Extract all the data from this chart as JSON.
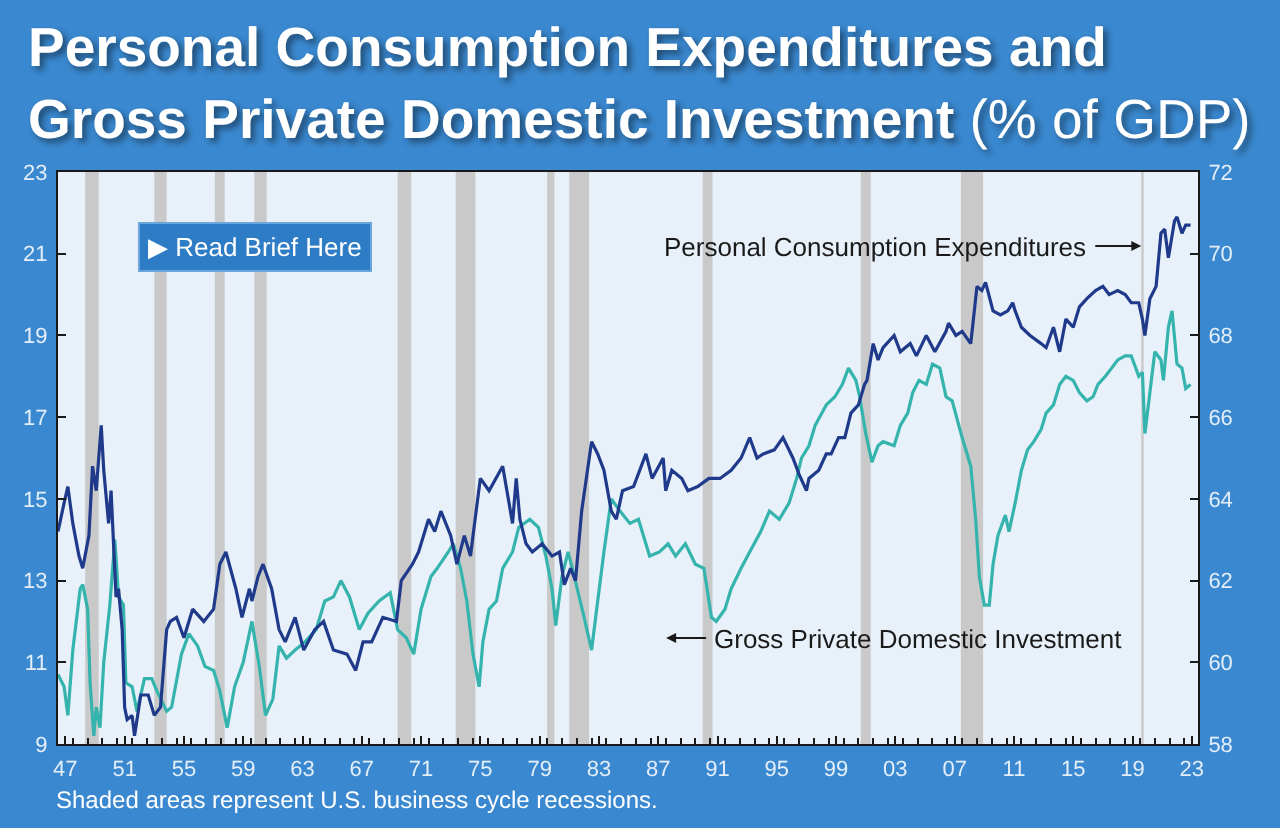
{
  "chart_data": {
    "type": "line",
    "title": "Personal Consumption Expenditures and Gross Private Domestic Investment (% of GDP)",
    "annotations": [
      "▶ Read Brief Here",
      "Shaded areas represent U.S. business cycle recessions."
    ],
    "xlim": [
      "1947-01",
      "2023-12"
    ],
    "xticks": [
      {
        "value": "1947-07",
        "label": "47"
      },
      {
        "value": "1951-07",
        "label": "51"
      },
      {
        "value": "1955-07",
        "label": "55"
      },
      {
        "value": "1959-07",
        "label": "59"
      },
      {
        "value": "1963-07",
        "label": "63"
      },
      {
        "value": "1967-07",
        "label": "67"
      },
      {
        "value": "1971-07",
        "label": "71"
      },
      {
        "value": "1975-07",
        "label": "75"
      },
      {
        "value": "1979-07",
        "label": "79"
      },
      {
        "value": "1983-07",
        "label": "83"
      },
      {
        "value": "1987-07",
        "label": "87"
      },
      {
        "value": "1991-07",
        "label": "91"
      },
      {
        "value": "1995-07",
        "label": "95"
      },
      {
        "value": "1999-07",
        "label": "99"
      },
      {
        "value": "2003-07",
        "label": "03"
      },
      {
        "value": "2007-07",
        "label": "07"
      },
      {
        "value": "2011-07",
        "label": "11"
      },
      {
        "value": "2015-07",
        "label": "15"
      },
      {
        "value": "2019-07",
        "label": "19"
      },
      {
        "value": "2023-07",
        "label": "23"
      },
      {
        "value": "1948-01",
        "label": null
      },
      {
        "value": "1949-01",
        "label": null
      },
      {
        "value": "1950-01",
        "label": null
      },
      {
        "value": "1951-01",
        "label": null
      },
      {
        "value": "1952-01",
        "label": null
      },
      {
        "value": "1953-01",
        "label": null
      },
      {
        "value": "1954-01",
        "label": null
      },
      {
        "value": "1955-01",
        "label": null
      },
      {
        "value": "1956-01",
        "label": null
      },
      {
        "value": "1957-01",
        "label": null
      },
      {
        "value": "1958-01",
        "label": null
      },
      {
        "value": "1959-01",
        "label": null
      },
      {
        "value": "1960-01",
        "label": null
      },
      {
        "value": "1961-01",
        "label": null
      },
      {
        "value": "1962-01",
        "label": null
      },
      {
        "value": "1963-01",
        "label": null
      },
      {
        "value": "1964-01",
        "label": null
      },
      {
        "value": "1965-01",
        "label": null
      },
      {
        "value": "1966-01",
        "label": null
      },
      {
        "value": "1967-01",
        "label": null
      },
      {
        "value": "1968-01",
        "label": null
      },
      {
        "value": "1969-01",
        "label": null
      },
      {
        "value": "1970-01",
        "label": null
      },
      {
        "value": "1971-01",
        "label": null
      },
      {
        "value": "1972-01",
        "label": null
      },
      {
        "value": "1973-01",
        "label": null
      },
      {
        "value": "1974-01",
        "label": null
      },
      {
        "value": "1975-01",
        "label": null
      },
      {
        "value": "1976-01",
        "label": null
      },
      {
        "value": "1977-01",
        "label": null
      },
      {
        "value": "1978-01",
        "label": null
      },
      {
        "value": "1979-01",
        "label": null
      },
      {
        "value": "1980-01",
        "label": null
      },
      {
        "value": "1981-01",
        "label": null
      },
      {
        "value": "1982-01",
        "label": null
      },
      {
        "value": "1983-01",
        "label": null
      },
      {
        "value": "1984-01",
        "label": null
      },
      {
        "value": "1985-01",
        "label": null
      },
      {
        "value": "1986-01",
        "label": null
      },
      {
        "value": "1987-01",
        "label": null
      },
      {
        "value": "1988-01",
        "label": null
      },
      {
        "value": "1989-01",
        "label": null
      },
      {
        "value": "1990-01",
        "label": null
      },
      {
        "value": "1991-01",
        "label": null
      },
      {
        "value": "1992-01",
        "label": null
      },
      {
        "value": "1993-01",
        "label": null
      },
      {
        "value": "1994-01",
        "label": null
      },
      {
        "value": "1995-01",
        "label": null
      },
      {
        "value": "1996-01",
        "label": null
      },
      {
        "value": "1997-01",
        "label": null
      },
      {
        "value": "1998-01",
        "label": null
      },
      {
        "value": "1999-01",
        "label": null
      },
      {
        "value": "2000-01",
        "label": null
      },
      {
        "value": "2001-01",
        "label": null
      },
      {
        "value": "2002-01",
        "label": null
      },
      {
        "value": "2003-01",
        "label": null
      },
      {
        "value": "2004-01",
        "label": null
      },
      {
        "value": "2005-01",
        "label": null
      },
      {
        "value": "2006-01",
        "label": null
      },
      {
        "value": "2007-01",
        "label": null
      },
      {
        "value": "2008-01",
        "label": null
      },
      {
        "value": "2009-01",
        "label": null
      },
      {
        "value": "2010-01",
        "label": null
      },
      {
        "value": "2011-01",
        "label": null
      },
      {
        "value": "2012-01",
        "label": null
      },
      {
        "value": "2013-01",
        "label": null
      },
      {
        "value": "2014-01",
        "label": null
      },
      {
        "value": "2015-01",
        "label": null
      },
      {
        "value": "2016-01",
        "label": null
      },
      {
        "value": "2017-01",
        "label": null
      },
      {
        "value": "2018-01",
        "label": null
      },
      {
        "value": "2019-01",
        "label": null
      },
      {
        "value": "2020-01",
        "label": null
      },
      {
        "value": "2021-01",
        "label": null
      },
      {
        "value": "2022-01",
        "label": null
      },
      {
        "value": "2023-01",
        "label": null
      }
    ],
    "ylim": [
      9,
      23
    ],
    "yticks": [
      9,
      11,
      13,
      15,
      17,
      19,
      21,
      23
    ],
    "y2lim": [
      58,
      72
    ],
    "y2ticks": [
      58,
      60,
      62,
      64,
      66,
      68,
      70,
      72
    ],
    "bands": [
      {
        "axis": "x",
        "from": "1948-11",
        "to": "1949-10",
        "color": "#c9c9c9"
      },
      {
        "axis": "x",
        "from": "1953-07",
        "to": "1954-05",
        "color": "#c9c9c9"
      },
      {
        "axis": "x",
        "from": "1957-08",
        "to": "1958-04",
        "color": "#c9c9c9"
      },
      {
        "axis": "x",
        "from": "1960-04",
        "to": "1961-02",
        "color": "#c9c9c9"
      },
      {
        "axis": "x",
        "from": "1969-12",
        "to": "1970-11",
        "color": "#c9c9c9"
      },
      {
        "axis": "x",
        "from": "1973-11",
        "to": "1975-03",
        "color": "#c9c9c9"
      },
      {
        "axis": "x",
        "from": "1980-01",
        "to": "1980-07",
        "color": "#c9c9c9"
      },
      {
        "axis": "x",
        "from": "1981-07",
        "to": "1982-11",
        "color": "#c9c9c9"
      },
      {
        "axis": "x",
        "from": "1990-07",
        "to": "1991-03",
        "color": "#c9c9c9"
      },
      {
        "axis": "x",
        "from": "2001-03",
        "to": "2001-11",
        "color": "#c9c9c9"
      },
      {
        "axis": "x",
        "from": "2007-12",
        "to": "2009-06",
        "color": "#c9c9c9"
      },
      {
        "axis": "x",
        "from": "2020-02",
        "to": "2020-04",
        "color": "#c9c9c9"
      }
    ],
    "series": [
      {
        "name": "Personal Consumption Expenditures",
        "color": "#1f3a8a",
        "axis": "y2",
        "x": [
          "1947-01",
          "1947-06",
          "1947-09",
          "1948-01",
          "1948-06",
          "1948-09",
          "1949-02",
          "1949-05",
          "1949-08",
          "1949-12",
          "1950-02",
          "1950-06",
          "1950-08",
          "1950-12",
          "1951-02",
          "1951-05",
          "1951-07",
          "1951-09",
          "1952-01",
          "1952-03",
          "1952-08",
          "1953-02",
          "1953-07",
          "1953-12",
          "1954-05",
          "1954-08",
          "1955-01",
          "1955-07",
          "1956-02",
          "1956-11",
          "1957-07",
          "1957-12",
          "1958-05",
          "1959-01",
          "1959-06",
          "1959-12",
          "1960-02",
          "1960-07",
          "1960-11",
          "1961-06",
          "1961-12",
          "1962-05",
          "1963-01",
          "1963-08",
          "1964-05",
          "1964-12",
          "1965-08",
          "1966-07",
          "1967-02",
          "1967-08",
          "1968-03",
          "1968-12",
          "1969-11",
          "1970-03",
          "1970-12",
          "1971-05",
          "1972-01",
          "1972-06",
          "1972-11",
          "1973-07",
          "1973-12",
          "1974-06",
          "1974-11",
          "1975-01",
          "1975-07",
          "1976-02",
          "1977-01",
          "1977-09",
          "1977-12",
          "1978-03",
          "1978-08",
          "1979-01",
          "1979-09",
          "1980-05",
          "1980-11",
          "1981-03",
          "1981-08",
          "1981-12",
          "1982-05",
          "1983-01",
          "1983-06",
          "1983-11",
          "1984-05",
          "1984-09",
          "1985-02",
          "1985-11",
          "1986-09",
          "1987-02",
          "1987-11",
          "1988-01",
          "1988-06",
          "1989-02",
          "1989-07",
          "1990-03",
          "1990-12",
          "1991-09",
          "1992-06",
          "1993-02",
          "1993-09",
          "1994-03",
          "1994-08",
          "1995-05",
          "1995-12",
          "1996-08",
          "1997-01",
          "1997-07",
          "1997-09",
          "1998-05",
          "1998-11",
          "1999-03",
          "1999-09",
          "2000-02",
          "2000-07",
          "2001-01",
          "2001-06",
          "2001-08",
          "2002-01",
          "2002-05",
          "2002-09",
          "2003-06",
          "2003-11",
          "2004-07",
          "2004-12",
          "2005-08",
          "2006-03",
          "2006-12",
          "2007-02",
          "2007-08",
          "2008-01",
          "2008-08",
          "2009-01",
          "2009-05",
          "2009-08",
          "2010-02",
          "2010-08",
          "2011-02",
          "2011-06",
          "2011-08",
          "2012-01",
          "2012-08",
          "2013-05",
          "2013-09",
          "2014-03",
          "2014-08",
          "2015-01",
          "2015-07",
          "2015-12",
          "2016-06",
          "2017-01",
          "2017-07",
          "2017-12",
          "2018-07",
          "2019-01",
          "2019-06",
          "2019-12",
          "2020-03",
          "2020-05",
          "2020-09",
          "2021-02",
          "2021-06",
          "2021-09",
          "2021-12",
          "2022-05",
          "2022-07",
          "2022-11",
          "2023-02",
          "2023-06"
        ],
        "values": [
          63.2,
          63.9,
          64.3,
          63.4,
          62.6,
          62.3,
          63.1,
          64.8,
          64.2,
          65.8,
          64.7,
          63.4,
          64.2,
          61.6,
          61.8,
          60.8,
          58.9,
          58.6,
          58.7,
          58.2,
          59.2,
          59.2,
          58.7,
          58.9,
          60.8,
          61.0,
          61.1,
          60.6,
          61.3,
          61.0,
          61.3,
          62.4,
          62.7,
          61.8,
          61.1,
          61.8,
          61.5,
          62.1,
          62.4,
          61.8,
          60.8,
          60.5,
          61.1,
          60.3,
          60.8,
          61.0,
          60.3,
          60.2,
          59.8,
          60.5,
          60.5,
          61.1,
          61.0,
          62.0,
          62.4,
          62.7,
          63.5,
          63.2,
          63.7,
          63.1,
          62.4,
          63.1,
          62.6,
          63.1,
          64.5,
          64.2,
          64.8,
          63.4,
          64.5,
          63.5,
          62.9,
          62.7,
          62.9,
          62.6,
          62.7,
          61.9,
          62.3,
          62.0,
          63.7,
          65.4,
          65.1,
          64.7,
          63.7,
          63.5,
          64.2,
          64.3,
          65.1,
          64.5,
          65.0,
          64.2,
          64.7,
          64.5,
          64.2,
          64.3,
          64.5,
          64.5,
          64.7,
          65.0,
          65.5,
          65.0,
          65.1,
          65.2,
          65.5,
          65.0,
          64.6,
          64.2,
          64.5,
          64.7,
          65.1,
          65.1,
          65.5,
          65.5,
          66.1,
          66.3,
          66.8,
          66.9,
          67.8,
          67.4,
          67.7,
          68.0,
          67.6,
          67.8,
          67.5,
          68.0,
          67.6,
          68.1,
          68.3,
          68.0,
          68.1,
          67.8,
          69.2,
          69.1,
          69.3,
          68.6,
          68.5,
          68.6,
          68.8,
          68.6,
          68.2,
          68.0,
          67.8,
          67.7,
          68.2,
          67.6,
          68.4,
          68.2,
          68.7,
          68.9,
          69.1,
          69.2,
          69.0,
          69.1,
          69.0,
          68.8,
          68.8,
          68.4,
          68.0,
          68.9,
          69.2,
          70.5,
          70.6,
          69.9,
          70.8,
          70.9,
          70.5,
          70.7,
          70.7
        ]
      },
      {
        "name": "Gross Private Domestic Investment",
        "color": "#35b3ad",
        "x": [
          "1947-01",
          "1947-06",
          "1947-09",
          "1948-01",
          "1948-07",
          "1948-09",
          "1949-01",
          "1949-03",
          "1949-06",
          "1949-08",
          "1949-11",
          "1950-02",
          "1950-07",
          "1950-11",
          "1951-02",
          "1951-06",
          "1951-08",
          "1952-01",
          "1952-05",
          "1952-11",
          "1953-05",
          "1953-09",
          "1954-05",
          "1954-09",
          "1955-05",
          "1955-11",
          "1956-06",
          "1956-12",
          "1957-07",
          "1957-12",
          "1958-06",
          "1958-12",
          "1959-07",
          "1960-02",
          "1960-08",
          "1961-01",
          "1961-07",
          "1961-12",
          "1962-06",
          "1963-01",
          "1963-09",
          "1964-06",
          "1965-01",
          "1965-08",
          "1966-02",
          "1966-09",
          "1967-05",
          "1967-12",
          "1968-09",
          "1969-06",
          "1969-12",
          "1970-07",
          "1971-01",
          "1971-07",
          "1972-03",
          "1972-08",
          "1973-05",
          "1973-09",
          "1974-03",
          "1974-08",
          "1975-01",
          "1975-06",
          "1975-09",
          "1976-02",
          "1976-08",
          "1977-01",
          "1977-09",
          "1978-02",
          "1978-11",
          "1979-06",
          "1979-12",
          "1980-05",
          "1980-08",
          "1981-01",
          "1981-06",
          "1981-11",
          "1982-07",
          "1983-01",
          "1983-06",
          "1983-11",
          "1984-05",
          "1984-12",
          "1985-08",
          "1986-03",
          "1986-12",
          "1987-08",
          "1988-03",
          "1988-09",
          "1989-05",
          "1990-01",
          "1990-08",
          "1991-02",
          "1991-06",
          "1992-01",
          "1992-06",
          "1993-02",
          "1993-09",
          "1994-06",
          "1995-01",
          "1995-09",
          "1996-05",
          "1996-11",
          "1997-03",
          "1997-09",
          "1998-02",
          "1998-11",
          "1999-06",
          "1999-12",
          "2000-05",
          "2000-11",
          "2001-02",
          "2001-07",
          "2001-12",
          "2002-05",
          "2002-09",
          "2003-06",
          "2003-11",
          "2004-05",
          "2004-09",
          "2005-02",
          "2005-08",
          "2006-01",
          "2006-07",
          "2006-12",
          "2007-05",
          "2008-01",
          "2008-08",
          "2008-12",
          "2009-03",
          "2009-07",
          "2009-11",
          "2010-02",
          "2010-06",
          "2010-12",
          "2011-03",
          "2011-08",
          "2012-01",
          "2012-06",
          "2012-11",
          "2013-05",
          "2013-09",
          "2014-03",
          "2014-08",
          "2015-01",
          "2015-07",
          "2015-12",
          "2016-06",
          "2016-11",
          "2017-03",
          "2017-09",
          "2018-02",
          "2018-07",
          "2019-01",
          "2019-06",
          "2019-12",
          "2020-03",
          "2020-05",
          "2020-09",
          "2021-01",
          "2021-06",
          "2021-08",
          "2021-12",
          "2022-03",
          "2022-07",
          "2022-11",
          "2023-02",
          "2023-06"
        ],
        "values": [
          10.7,
          10.4,
          9.7,
          11.3,
          12.8,
          12.9,
          12.3,
          10.5,
          9.2,
          9.9,
          9.4,
          11.0,
          12.4,
          14.0,
          12.6,
          12.4,
          10.5,
          10.4,
          9.8,
          10.6,
          10.6,
          10.3,
          9.8,
          9.9,
          11.2,
          11.7,
          11.4,
          10.9,
          10.8,
          10.3,
          9.4,
          10.4,
          11.0,
          12.0,
          10.9,
          9.7,
          10.1,
          11.4,
          11.1,
          11.3,
          11.5,
          11.8,
          12.5,
          12.6,
          13.0,
          12.6,
          11.8,
          12.2,
          12.5,
          12.7,
          11.8,
          11.6,
          11.2,
          12.3,
          13.1,
          13.3,
          13.7,
          13.9,
          13.3,
          12.5,
          11.2,
          10.4,
          11.5,
          12.3,
          12.5,
          13.3,
          13.7,
          14.3,
          14.5,
          14.3,
          13.6,
          12.8,
          11.9,
          13.1,
          13.7,
          13.1,
          12.1,
          11.3,
          12.5,
          13.7,
          15.0,
          14.7,
          14.4,
          14.5,
          13.6,
          13.7,
          13.9,
          13.6,
          13.9,
          13.4,
          13.3,
          12.1,
          12.0,
          12.3,
          12.8,
          13.3,
          13.7,
          14.2,
          14.7,
          14.5,
          14.9,
          15.5,
          16.0,
          16.3,
          16.8,
          17.3,
          17.5,
          17.8,
          18.2,
          17.9,
          17.5,
          16.6,
          15.9,
          16.3,
          16.4,
          16.3,
          16.8,
          17.1,
          17.6,
          17.9,
          17.8,
          18.3,
          18.2,
          17.5,
          17.4,
          16.5,
          15.8,
          14.5,
          13.1,
          12.4,
          12.4,
          13.4,
          14.1,
          14.6,
          14.2,
          14.9,
          15.7,
          16.2,
          16.4,
          16.7,
          17.1,
          17.3,
          17.8,
          18.0,
          17.9,
          17.6,
          17.4,
          17.5,
          17.8,
          18.0,
          18.2,
          18.4,
          18.5,
          18.5,
          18.0,
          18.1,
          16.6,
          17.6,
          18.6,
          18.4,
          17.9,
          19.2,
          19.6,
          18.3,
          18.2,
          17.7,
          17.8
        ]
      }
    ]
  }
}
